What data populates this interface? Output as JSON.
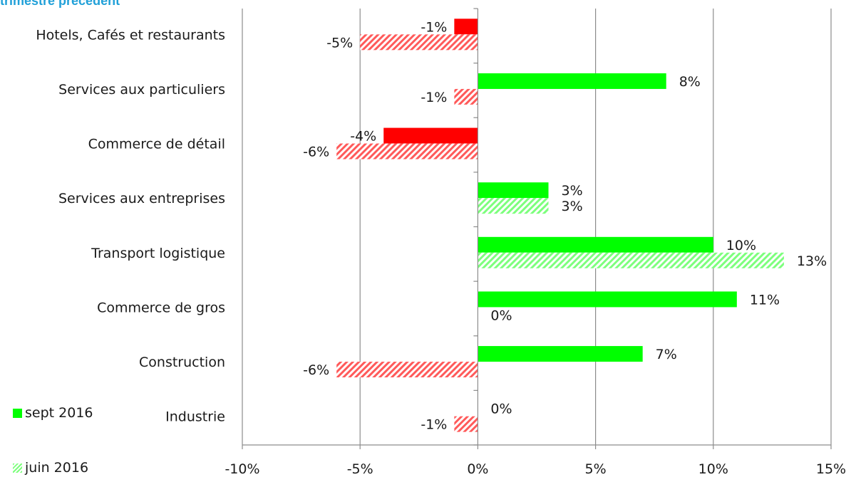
{
  "chart_data": {
    "type": "bar",
    "orientation": "horizontal",
    "title": "trimestre précédent",
    "categories": [
      "Hotels, Cafés et restaurants",
      "Services aux particuliers",
      "Commerce de détail",
      "Services aux entreprises",
      "Transport logistique",
      "Commerce de gros",
      "Construction",
      "Industrie"
    ],
    "series": [
      {
        "name": "sept 2016",
        "style": "solid",
        "values": [
          -1,
          8,
          -4,
          3,
          10,
          11,
          7,
          0
        ],
        "labels": [
          "-1%",
          "8%",
          "-4%",
          "3%",
          "10%",
          "11%",
          "7%",
          "0%"
        ]
      },
      {
        "name": "juin 2016",
        "style": "hatched",
        "values": [
          -5,
          -1,
          -6,
          3,
          13,
          0,
          -6,
          -1
        ],
        "labels": [
          "-5%",
          "-1%",
          "-6%",
          "3%",
          "13%",
          "0%",
          "-6%",
          "-1%"
        ]
      }
    ],
    "xlim": [
      -10,
      15
    ],
    "xticks": [
      -10,
      -5,
      0,
      5,
      10,
      15
    ],
    "xtick_labels": [
      "-10%",
      "-5%",
      "0%",
      "5%",
      "10%",
      "15%"
    ],
    "grid": true,
    "legend_position": "bottom-left",
    "colors": {
      "positive_solid": "#00ff00",
      "negative_solid": "#ff0000",
      "positive_hatch": "#7dff7d",
      "negative_hatch": "#ff5a5a"
    }
  }
}
